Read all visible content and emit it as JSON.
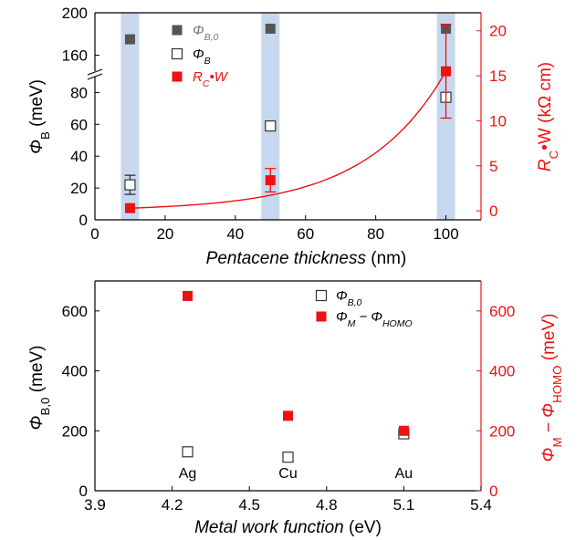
{
  "colors": {
    "black": "#000000",
    "red": "#ee1111",
    "highlight": "#c7d8ee",
    "filled_gray": "#555555"
  },
  "chart_data": [
    {
      "type": "scatter",
      "xlabel": "Pentacene thickness (nm)",
      "xlim": [
        0,
        110
      ],
      "x_ticks": [
        "0",
        "20",
        "40",
        "60",
        "80",
        "100"
      ],
      "y_left": {
        "label_main": "Φ",
        "label_sub": "B",
        "label_unit": " (meV)",
        "ticks_lower": [
          "0",
          "20",
          "40",
          "60",
          "80"
        ],
        "ticks_upper": [
          "160",
          "200"
        ],
        "broken_axis": true,
        "lower_range": [
          0,
          90
        ],
        "upper_range": [
          145,
          200
        ]
      },
      "y_right": {
        "label_main": "R",
        "label_sub": "C",
        "label_rest": "•W (kΩ cm)",
        "ticks": [
          "0",
          "5",
          "10",
          "15",
          "20"
        ],
        "ylim": [
          -1,
          22
        ],
        "color": "#ee1111"
      },
      "highlight_bands_x": [
        10,
        50,
        100
      ],
      "series": [
        {
          "name_main": "Φ",
          "name_sub": "B,0",
          "marker": "filled-gray-square",
          "x": [
            10,
            50,
            100
          ],
          "y": [
            175,
            185,
            185
          ]
        },
        {
          "name_main": "Φ",
          "name_sub": "B",
          "marker": "open-square",
          "x": [
            10,
            50,
            100
          ],
          "y": [
            22,
            59,
            77
          ],
          "err": [
            6,
            0,
            0
          ]
        },
        {
          "name_main": "R",
          "name_sub": "C",
          "name_rest": "•W",
          "marker": "filled-red-square",
          "axis": "right",
          "x": [
            10,
            50,
            100
          ],
          "y": [
            0.3,
            3.4,
            15.5
          ],
          "err": [
            0,
            1.3,
            5.2
          ]
        }
      ],
      "fit_curve": {
        "axis": "right",
        "model": "exponential",
        "x_from": 10,
        "x_to": 100,
        "y_from": 0.3,
        "y_to": 15.5
      }
    },
    {
      "type": "scatter",
      "xlabel": "Metal work function (eV)",
      "xlim": [
        3.9,
        5.4
      ],
      "x_ticks": [
        "3.9",
        "4.2",
        "4.5",
        "4.8",
        "5.1",
        "5.4"
      ],
      "y_left": {
        "label_main": "Φ",
        "label_sub": "B,0",
        "label_unit": " (meV)",
        "ticks": [
          "0",
          "200",
          "400",
          "600"
        ],
        "ylim": [
          0,
          700
        ]
      },
      "y_right": {
        "label_main": "Φ",
        "label_sub": "M",
        "label_mid": " − Φ",
        "label_sub2": "HOMO",
        "label_unit": " (meV)",
        "ticks": [
          "0",
          "200",
          "400",
          "600"
        ],
        "ylim": [
          0,
          700
        ],
        "color": "#ee1111"
      },
      "categories": [
        "Ag",
        "Cu",
        "Au"
      ],
      "series": [
        {
          "name_main": "Φ",
          "name_sub": "B,0",
          "marker": "open-square-err",
          "x": [
            4.26,
            4.65,
            5.1
          ],
          "y": [
            130,
            112,
            190
          ]
        },
        {
          "name_main": "Φ",
          "name_sub": "M",
          "name_mid": " − Φ",
          "name_sub2": "HOMO",
          "marker": "filled-red-square",
          "x": [
            4.26,
            4.65,
            5.1
          ],
          "y": [
            650,
            250,
            200
          ]
        }
      ]
    }
  ]
}
